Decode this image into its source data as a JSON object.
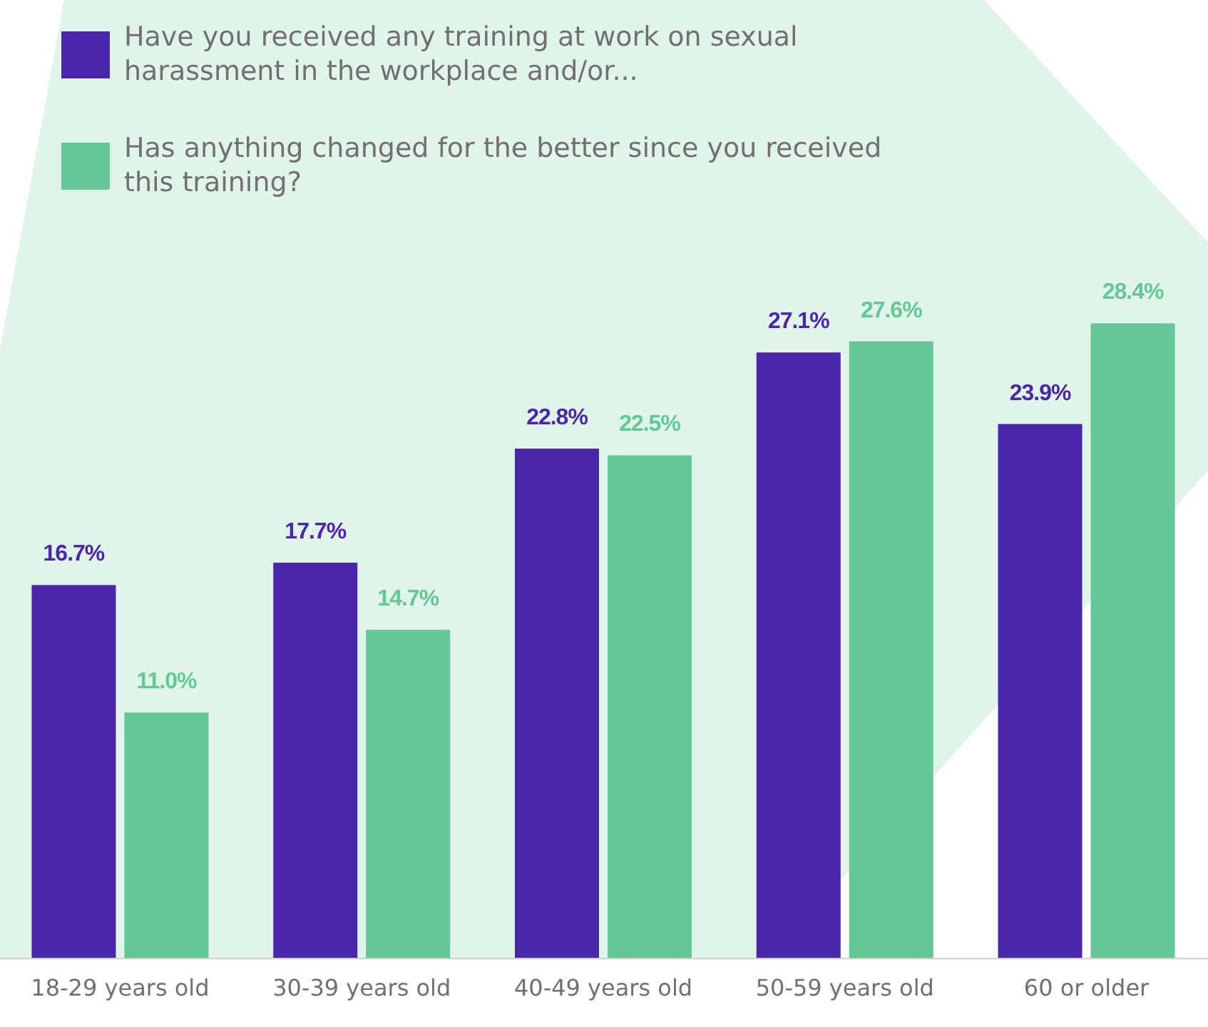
{
  "chart_data": {
    "type": "bar",
    "categories": [
      "18-29 years old",
      "30-39 years old",
      "40-49 years old",
      "50-59 years old",
      "60 or older"
    ],
    "series": [
      {
        "name": "Have you received any training at work on sexual harassment in the workplace and/or...",
        "color": "#4a26ab",
        "values": [
          16.7,
          17.7,
          22.8,
          27.1,
          23.9
        ],
        "value_labels": [
          "16.7%",
          "17.7%",
          "22.8%",
          "27.1%",
          "23.9%"
        ]
      },
      {
        "name": "Has anything changed for the better since you received this training?",
        "color": "#63c896",
        "values": [
          11.0,
          14.7,
          22.5,
          27.6,
          28.4
        ],
        "value_labels": [
          "11.0%",
          "14.7%",
          "22.5%",
          "27.6%",
          "28.4%"
        ]
      }
    ],
    "legend": "top left"
  }
}
